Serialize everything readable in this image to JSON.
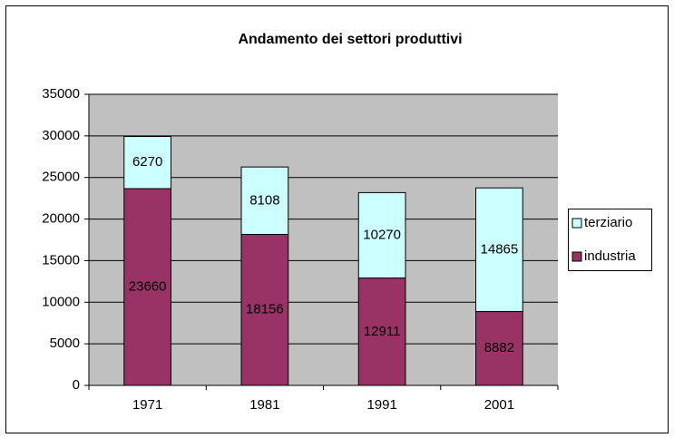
{
  "chart_data": {
    "type": "stacked_bar",
    "title": "Andamento dei settori produttivi",
    "categories": [
      "1971",
      "1981",
      "1991",
      "2001"
    ],
    "series": [
      {
        "name": "industria",
        "color": "#993366",
        "values": [
          23660,
          18156,
          12911,
          8882
        ]
      },
      {
        "name": "terziario",
        "color": "#CCFFFF",
        "values": [
          6270,
          8108,
          10270,
          14865
        ]
      }
    ],
    "ylim": [
      0,
      35000
    ],
    "yticks": [
      0,
      5000,
      10000,
      15000,
      20000,
      25000,
      30000,
      35000
    ],
    "grid": true,
    "legend": "right"
  }
}
